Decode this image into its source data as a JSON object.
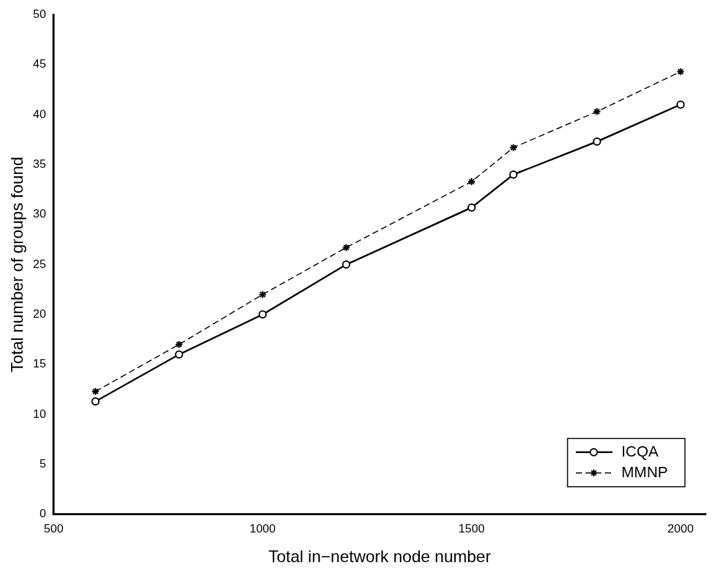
{
  "chart_data": {
    "type": "line",
    "xlabel": "Total in−network node number",
    "ylabel": "Total number of groups found",
    "x": [
      600,
      800,
      1000,
      1200,
      1500,
      1600,
      1800,
      2000
    ],
    "series": [
      {
        "name": "ICQA",
        "color": "#000000",
        "marker": "circle",
        "line_style": "solid",
        "values": [
          11.3,
          16,
          20,
          25,
          30.7,
          34,
          37.3,
          41
        ]
      },
      {
        "name": "MMNP",
        "color": "#000000",
        "marker": "cross",
        "line_style": "dashed",
        "values": [
          12.3,
          17,
          22,
          26.7,
          33.3,
          36.7,
          40.3,
          44.3
        ]
      }
    ],
    "xlim": [
      500,
      2060
    ],
    "xticks": [
      500,
      1000,
      1500,
      2000
    ],
    "ylim": [
      0,
      50
    ],
    "yticks": [
      0,
      5,
      10,
      15,
      20,
      25,
      30,
      35,
      40,
      45,
      50
    ],
    "grid": false,
    "legend": "bottom right"
  }
}
